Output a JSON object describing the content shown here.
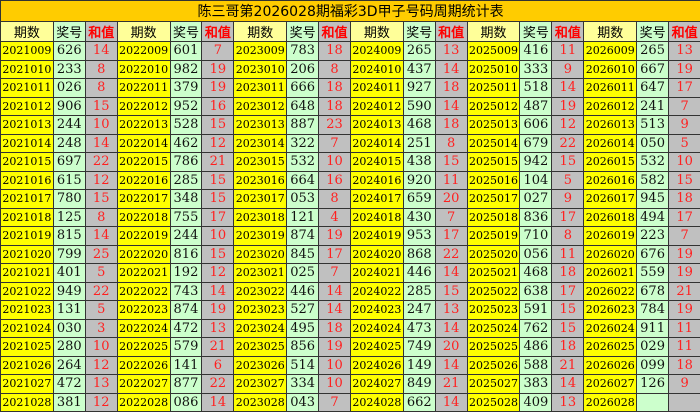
{
  "title": "陈三哥第2026028期福彩3D甲子号码周期统计表",
  "headers": {
    "period": "期数",
    "number": "奖号",
    "sum": "和值"
  },
  "colors": {
    "title_bg": "#ffcc00",
    "period_bg": "#ffff00",
    "number_bg": "#ccffcc",
    "sum_bg": "#c0c0c0",
    "sum_text": "#ff0000"
  },
  "groups": [
    {
      "rows": [
        [
          "2021009",
          "626",
          "14"
        ],
        [
          "2021010",
          "233",
          "8"
        ],
        [
          "2021011",
          "026",
          "8"
        ],
        [
          "2021012",
          "906",
          "15"
        ],
        [
          "2021013",
          "244",
          "10"
        ],
        [
          "2021014",
          "248",
          "14"
        ],
        [
          "2021015",
          "697",
          "22"
        ],
        [
          "2021016",
          "615",
          "12"
        ],
        [
          "2021017",
          "780",
          "15"
        ],
        [
          "2021018",
          "125",
          "8"
        ],
        [
          "2021019",
          "815",
          "14"
        ],
        [
          "2021020",
          "799",
          "25"
        ],
        [
          "2021021",
          "401",
          "5"
        ],
        [
          "2021022",
          "949",
          "22"
        ],
        [
          "2021023",
          "131",
          "5"
        ],
        [
          "2021024",
          "030",
          "3"
        ],
        [
          "2021025",
          "280",
          "10"
        ],
        [
          "2021026",
          "264",
          "12"
        ],
        [
          "2021027",
          "472",
          "13"
        ],
        [
          "2021028",
          "381",
          "12"
        ]
      ]
    },
    {
      "rows": [
        [
          "2022009",
          "601",
          "7"
        ],
        [
          "2022010",
          "982",
          "19"
        ],
        [
          "2022011",
          "379",
          "19"
        ],
        [
          "2022012",
          "952",
          "16"
        ],
        [
          "2022013",
          "528",
          "15"
        ],
        [
          "2022014",
          "462",
          "12"
        ],
        [
          "2022015",
          "786",
          "21"
        ],
        [
          "2022016",
          "285",
          "15"
        ],
        [
          "2022017",
          "348",
          "15"
        ],
        [
          "2022018",
          "755",
          "17"
        ],
        [
          "2022019",
          "244",
          "10"
        ],
        [
          "2022020",
          "816",
          "15"
        ],
        [
          "2022021",
          "192",
          "12"
        ],
        [
          "2022022",
          "743",
          "14"
        ],
        [
          "2022023",
          "874",
          "19"
        ],
        [
          "2022024",
          "472",
          "13"
        ],
        [
          "2022025",
          "579",
          "21"
        ],
        [
          "2022026",
          "141",
          "6"
        ],
        [
          "2022027",
          "877",
          "22"
        ],
        [
          "2022028",
          "086",
          "14"
        ]
      ]
    },
    {
      "rows": [
        [
          "2023009",
          "783",
          "18"
        ],
        [
          "2023010",
          "206",
          "8"
        ],
        [
          "2023011",
          "666",
          "18"
        ],
        [
          "2023012",
          "648",
          "18"
        ],
        [
          "2023013",
          "887",
          "23"
        ],
        [
          "2023014",
          "322",
          "7"
        ],
        [
          "2023015",
          "532",
          "10"
        ],
        [
          "2023016",
          "664",
          "16"
        ],
        [
          "2023017",
          "053",
          "8"
        ],
        [
          "2023018",
          "121",
          "4"
        ],
        [
          "2023019",
          "874",
          "19"
        ],
        [
          "2023020",
          "845",
          "17"
        ],
        [
          "2023021",
          "025",
          "7"
        ],
        [
          "2023022",
          "446",
          "14"
        ],
        [
          "2023023",
          "527",
          "14"
        ],
        [
          "2023024",
          "495",
          "18"
        ],
        [
          "2023025",
          "856",
          "19"
        ],
        [
          "2023026",
          "514",
          "10"
        ],
        [
          "2023027",
          "334",
          "10"
        ],
        [
          "2023028",
          "043",
          "7"
        ]
      ]
    },
    {
      "rows": [
        [
          "2024009",
          "265",
          "13"
        ],
        [
          "2024010",
          "437",
          "14"
        ],
        [
          "2024011",
          "927",
          "18"
        ],
        [
          "2024012",
          "590",
          "14"
        ],
        [
          "2024013",
          "468",
          "18"
        ],
        [
          "2024014",
          "251",
          "8"
        ],
        [
          "2024015",
          "438",
          "15"
        ],
        [
          "2024016",
          "920",
          "11"
        ],
        [
          "2024017",
          "659",
          "20"
        ],
        [
          "2024018",
          "430",
          "7"
        ],
        [
          "2024019",
          "953",
          "17"
        ],
        [
          "2024020",
          "868",
          "22"
        ],
        [
          "2024021",
          "446",
          "14"
        ],
        [
          "2024022",
          "285",
          "15"
        ],
        [
          "2024023",
          "247",
          "13"
        ],
        [
          "2024024",
          "473",
          "14"
        ],
        [
          "2024025",
          "749",
          "20"
        ],
        [
          "2024026",
          "149",
          "14"
        ],
        [
          "2024027",
          "849",
          "21"
        ],
        [
          "2024028",
          "662",
          "14"
        ]
      ]
    },
    {
      "rows": [
        [
          "2025009",
          "416",
          "11"
        ],
        [
          "2025010",
          "333",
          "9"
        ],
        [
          "2025011",
          "518",
          "14"
        ],
        [
          "2025012",
          "487",
          "19"
        ],
        [
          "2025013",
          "606",
          "12"
        ],
        [
          "2025014",
          "679",
          "22"
        ],
        [
          "2025015",
          "942",
          "15"
        ],
        [
          "2025016",
          "104",
          "5"
        ],
        [
          "2025017",
          "027",
          "9"
        ],
        [
          "2025018",
          "836",
          "17"
        ],
        [
          "2025019",
          "710",
          "8"
        ],
        [
          "2025020",
          "056",
          "11"
        ],
        [
          "2025021",
          "468",
          "18"
        ],
        [
          "2025022",
          "638",
          "17"
        ],
        [
          "2025023",
          "591",
          "15"
        ],
        [
          "2025024",
          "762",
          "15"
        ],
        [
          "2025025",
          "486",
          "18"
        ],
        [
          "2025026",
          "588",
          "21"
        ],
        [
          "2025027",
          "383",
          "14"
        ],
        [
          "2025028",
          "409",
          "13"
        ]
      ]
    },
    {
      "rows": [
        [
          "2026009",
          "265",
          "13"
        ],
        [
          "2026010",
          "667",
          "19"
        ],
        [
          "2026011",
          "647",
          "17"
        ],
        [
          "2026012",
          "241",
          "7"
        ],
        [
          "2026013",
          "513",
          "9"
        ],
        [
          "2026014",
          "050",
          "5"
        ],
        [
          "2026015",
          "532",
          "10"
        ],
        [
          "2026016",
          "582",
          "15"
        ],
        [
          "2026017",
          "945",
          "18"
        ],
        [
          "2026018",
          "494",
          "17"
        ],
        [
          "2026019",
          "223",
          "7"
        ],
        [
          "2026020",
          "676",
          "19"
        ],
        [
          "2026021",
          "559",
          "19"
        ],
        [
          "2026022",
          "678",
          "21"
        ],
        [
          "2026023",
          "784",
          "19"
        ],
        [
          "2026024",
          "911",
          "11"
        ],
        [
          "2026025",
          "029",
          "11"
        ],
        [
          "2026026",
          "099",
          "18"
        ],
        [
          "2026027",
          "126",
          "9"
        ],
        [
          "2026028",
          "",
          ""
        ]
      ]
    }
  ]
}
